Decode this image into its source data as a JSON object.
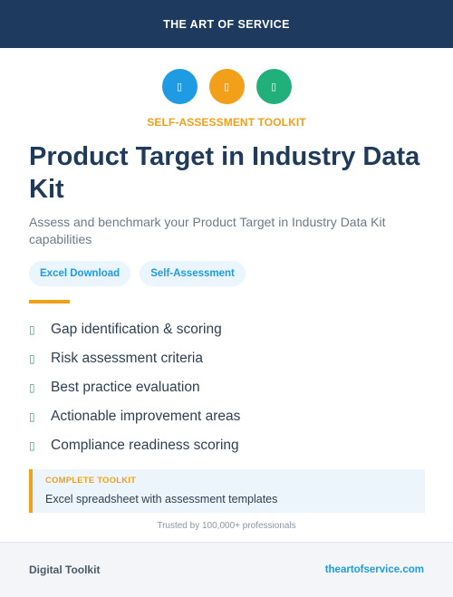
{
  "header": {
    "brand": "THE ART OF SERVICE"
  },
  "icons": [
    {
      "name": "blue-circle-icon",
      "glyph": "▯",
      "color": "#1e9be2"
    },
    {
      "name": "orange-circle-icon",
      "glyph": "▯",
      "color": "#f29f19"
    },
    {
      "name": "green-circle-icon",
      "glyph": "▯",
      "color": "#22b07a"
    }
  ],
  "kicker": "SELF-ASSESSMENT TOOLKIT",
  "title": "Product Target in Industry Data Kit",
  "subtitle": "Assess and benchmark your Product Target in Industry Data Kit capabilities",
  "tags": [
    "Excel Download",
    "Self-Assessment"
  ],
  "features": [
    {
      "check": "▯",
      "text": "Gap identification & scoring"
    },
    {
      "check": "▯",
      "text": "Risk assessment criteria"
    },
    {
      "check": "▯",
      "text": "Best practice evaluation"
    },
    {
      "check": "▯",
      "text": "Actionable improvement areas"
    },
    {
      "check": "▯",
      "text": "Compliance readiness scoring"
    }
  ],
  "callout": {
    "label": "COMPLETE TOOLKIT",
    "text": "Excel spreadsheet with assessment templates"
  },
  "trusted": "Trusted by 100,000+ professionals",
  "footer": {
    "left": "Digital Toolkit",
    "right": "theartofservice.com"
  }
}
